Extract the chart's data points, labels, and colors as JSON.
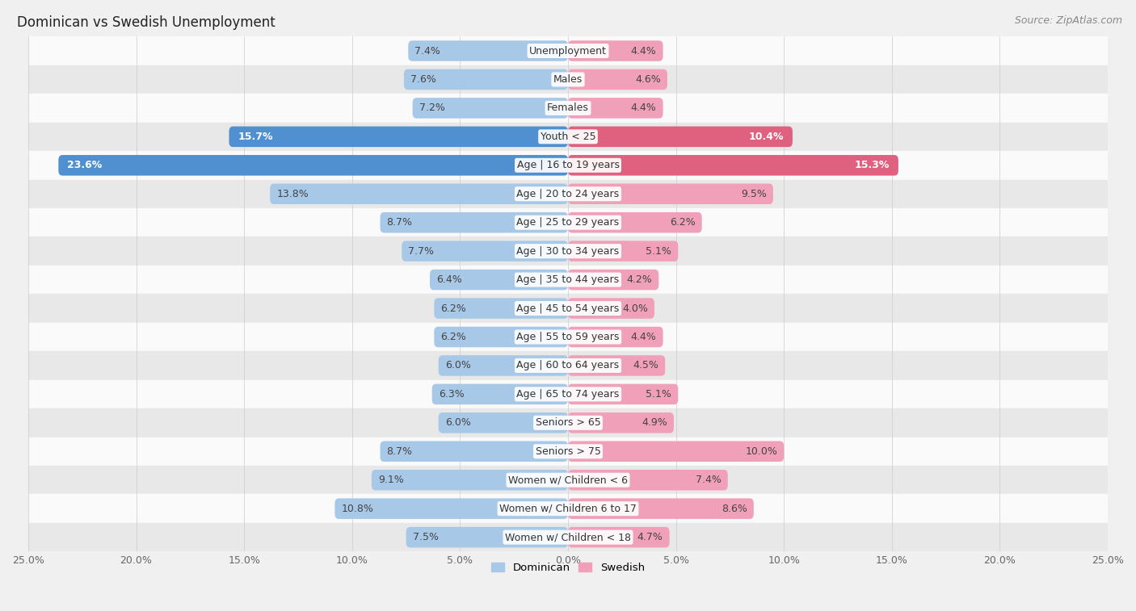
{
  "title": "Dominican vs Swedish Unemployment",
  "source": "Source: ZipAtlas.com",
  "categories": [
    "Unemployment",
    "Males",
    "Females",
    "Youth < 25",
    "Age | 16 to 19 years",
    "Age | 20 to 24 years",
    "Age | 25 to 29 years",
    "Age | 30 to 34 years",
    "Age | 35 to 44 years",
    "Age | 45 to 54 years",
    "Age | 55 to 59 years",
    "Age | 60 to 64 years",
    "Age | 65 to 74 years",
    "Seniors > 65",
    "Seniors > 75",
    "Women w/ Children < 6",
    "Women w/ Children 6 to 17",
    "Women w/ Children < 18"
  ],
  "dominican": [
    7.4,
    7.6,
    7.2,
    15.7,
    23.6,
    13.8,
    8.7,
    7.7,
    6.4,
    6.2,
    6.2,
    6.0,
    6.3,
    6.0,
    8.7,
    9.1,
    10.8,
    7.5
  ],
  "swedish": [
    4.4,
    4.6,
    4.4,
    10.4,
    15.3,
    9.5,
    6.2,
    5.1,
    4.2,
    4.0,
    4.4,
    4.5,
    5.1,
    4.9,
    10.0,
    7.4,
    8.6,
    4.7
  ],
  "dominican_color_normal": "#a8c8e8",
  "swedish_color_normal": "#f0a0b8",
  "dominican_color_highlight": "#5090d0",
  "swedish_color_highlight": "#e06080",
  "highlight_rows": [
    3,
    4
  ],
  "xlim": 25.0,
  "bar_height": 0.72,
  "bg_color": "#f0f0f0",
  "row_bg_even": "#fafafa",
  "row_bg_odd": "#e8e8e8",
  "label_fontsize": 9.0,
  "title_fontsize": 12,
  "source_fontsize": 9,
  "axis_fontsize": 9
}
